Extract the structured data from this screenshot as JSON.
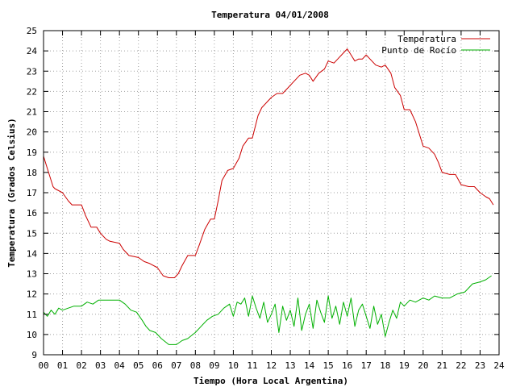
{
  "chart_data": {
    "type": "line",
    "title": "Temperatura 04/01/2008",
    "xlabel": "Tiempo (Hora Local Argentina)",
    "ylabel": "Temperatura (Grados Celsius)",
    "xlim": [
      0,
      24
    ],
    "ylim": [
      9,
      25
    ],
    "x_ticks": [
      0,
      1,
      2,
      3,
      4,
      5,
      6,
      7,
      8,
      9,
      10,
      11,
      12,
      13,
      14,
      15,
      16,
      17,
      18,
      19,
      20,
      21,
      22,
      23,
      24
    ],
    "x_tick_labels": [
      "00",
      "01",
      "02",
      "03",
      "04",
      "05",
      "06",
      "07",
      "08",
      "09",
      "10",
      "11",
      "12",
      "13",
      "14",
      "15",
      "16",
      "17",
      "18",
      "19",
      "20",
      "21",
      "22",
      "23",
      "24"
    ],
    "y_ticks": [
      9,
      10,
      11,
      12,
      13,
      14,
      15,
      16,
      17,
      18,
      19,
      20,
      21,
      22,
      23,
      24,
      25
    ],
    "y_tick_labels": [
      "9",
      "10",
      "11",
      "12",
      "13",
      "14",
      "15",
      "16",
      "17",
      "18",
      "19",
      "20",
      "21",
      "22",
      "23",
      "24",
      "25"
    ],
    "grid": true,
    "legend_position": "top-right",
    "series": [
      {
        "name": "Temperatura",
        "color": "#cc0000",
        "x": [
          0,
          0.2,
          0.5,
          0.6,
          1.0,
          1.3,
          1.5,
          2.0,
          2.2,
          2.5,
          2.8,
          3.0,
          3.3,
          3.5,
          4.0,
          4.2,
          4.5,
          5.0,
          5.3,
          5.6,
          6.0,
          6.3,
          6.6,
          6.9,
          7.1,
          7.3,
          7.6,
          8.0,
          8.2,
          8.5,
          8.8,
          9.0,
          9.2,
          9.4,
          9.7,
          10.0,
          10.3,
          10.5,
          10.8,
          11.0,
          11.3,
          11.5,
          11.8,
          12.0,
          12.3,
          12.6,
          12.9,
          13.2,
          13.5,
          13.8,
          14.0,
          14.2,
          14.5,
          14.8,
          15.0,
          15.3,
          15.5,
          15.8,
          16.0,
          16.2,
          16.4,
          16.6,
          16.8,
          17.0,
          17.2,
          17.5,
          17.8,
          18.0,
          18.3,
          18.5,
          18.8,
          19.0,
          19.3,
          19.6,
          20.0,
          20.3,
          20.6,
          20.8,
          21.0,
          21.4,
          21.7,
          22.0,
          22.4,
          22.7,
          23.0,
          23.3,
          23.5,
          23.7
        ],
        "values": [
          18.8,
          18.2,
          17.3,
          17.2,
          17.0,
          16.6,
          16.4,
          16.4,
          15.9,
          15.3,
          15.3,
          15.0,
          14.7,
          14.6,
          14.5,
          14.2,
          13.9,
          13.8,
          13.6,
          13.5,
          13.3,
          12.9,
          12.8,
          12.8,
          13.0,
          13.4,
          13.9,
          13.9,
          14.4,
          15.2,
          15.7,
          15.7,
          16.6,
          17.6,
          18.1,
          18.2,
          18.7,
          19.3,
          19.7,
          19.7,
          20.8,
          21.2,
          21.5,
          21.7,
          21.9,
          21.9,
          22.2,
          22.5,
          22.8,
          22.9,
          22.8,
          22.5,
          22.9,
          23.1,
          23.5,
          23.4,
          23.6,
          23.9,
          24.1,
          23.8,
          23.5,
          23.6,
          23.6,
          23.8,
          23.6,
          23.3,
          23.2,
          23.3,
          22.9,
          22.2,
          21.8,
          21.1,
          21.1,
          20.5,
          19.3,
          19.2,
          18.9,
          18.5,
          18.0,
          17.9,
          17.9,
          17.4,
          17.3,
          17.3,
          17.0,
          16.8,
          16.7,
          16.4
        ]
      },
      {
        "name": "Punto de Rocío",
        "color": "#00b000",
        "x": [
          0,
          0.2,
          0.4,
          0.6,
          0.8,
          1.0,
          1.3,
          1.6,
          2.0,
          2.3,
          2.6,
          2.9,
          3.2,
          3.5,
          3.8,
          4.0,
          4.3,
          4.6,
          4.9,
          5.2,
          5.4,
          5.6,
          5.9,
          6.2,
          6.6,
          7.0,
          7.3,
          7.6,
          8.0,
          8.3,
          8.6,
          8.9,
          9.2,
          9.5,
          9.8,
          10.0,
          10.2,
          10.4,
          10.6,
          10.8,
          11.0,
          11.2,
          11.4,
          11.6,
          11.8,
          12.0,
          12.2,
          12.4,
          12.6,
          12.8,
          13.0,
          13.2,
          13.4,
          13.6,
          13.8,
          14.0,
          14.2,
          14.4,
          14.6,
          14.8,
          15.0,
          15.2,
          15.4,
          15.6,
          15.8,
          16.0,
          16.2,
          16.4,
          16.6,
          16.8,
          17.0,
          17.2,
          17.4,
          17.6,
          17.8,
          18.0,
          18.2,
          18.4,
          18.6,
          18.8,
          19.0,
          19.3,
          19.6,
          20.0,
          20.3,
          20.6,
          21.0,
          21.4,
          21.8,
          22.2,
          22.6,
          23.0,
          23.3,
          23.6
        ],
        "values": [
          11.1,
          10.9,
          11.2,
          11.0,
          11.3,
          11.2,
          11.3,
          11.4,
          11.4,
          11.6,
          11.5,
          11.7,
          11.7,
          11.7,
          11.7,
          11.7,
          11.5,
          11.2,
          11.1,
          10.7,
          10.4,
          10.2,
          10.1,
          9.8,
          9.5,
          9.5,
          9.7,
          9.8,
          10.1,
          10.4,
          10.7,
          10.9,
          11.0,
          11.3,
          11.5,
          10.9,
          11.6,
          11.5,
          11.8,
          10.9,
          11.9,
          11.3,
          10.8,
          11.6,
          10.6,
          11.0,
          11.5,
          10.1,
          11.4,
          10.7,
          11.2,
          10.4,
          11.8,
          10.2,
          11.0,
          11.5,
          10.3,
          11.7,
          11.1,
          10.6,
          11.9,
          10.8,
          11.4,
          10.5,
          11.6,
          10.9,
          11.8,
          10.4,
          11.2,
          11.5,
          10.9,
          10.3,
          11.4,
          10.5,
          11.0,
          9.9,
          10.6,
          11.2,
          10.8,
          11.6,
          11.4,
          11.7,
          11.6,
          11.8,
          11.7,
          11.9,
          11.8,
          11.8,
          12.0,
          12.1,
          12.5,
          12.6,
          12.7,
          12.9
        ]
      }
    ]
  }
}
